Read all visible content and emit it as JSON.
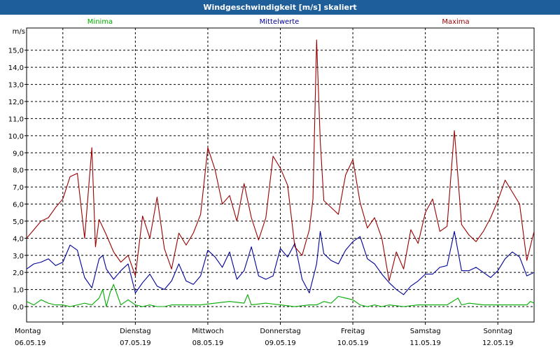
{
  "window": {
    "title": "Windgeschwindigkeit [m/s] skaliert"
  },
  "colors": {
    "min": "#00aa00",
    "mean": "#000099",
    "max": "#990000",
    "grid": "#000000"
  },
  "chart_data": {
    "type": "line",
    "title": "Windgeschwindigkeit [m/s] skaliert",
    "ylabel": "m/s",
    "ylim": [
      -0.9,
      16.3
    ],
    "yticks": [
      "0,0",
      "1,0",
      "2,0",
      "3,0",
      "4,0",
      "5,0",
      "6,0",
      "7,0",
      "8,0",
      "9,0",
      "10,0",
      "11,0",
      "12,0",
      "13,0",
      "14,0",
      "15,0"
    ],
    "ytick_values": [
      0,
      1,
      2,
      3,
      4,
      5,
      6,
      7,
      8,
      9,
      10,
      11,
      12,
      13,
      14,
      15
    ],
    "xlim": [
      0,
      7
    ],
    "x_labels": [
      {
        "day": "Montag",
        "date": "06.05.19",
        "x": 0
      },
      {
        "day": "Dienstag",
        "date": "07.05.19",
        "x": 1
      },
      {
        "day": "Mittwoch",
        "date": "08.05.19",
        "x": 2
      },
      {
        "day": "Donnerstag",
        "date": "09.05.19",
        "x": 3
      },
      {
        "day": "Freitag",
        "date": "10.05.19",
        "x": 4
      },
      {
        "day": "Samstag",
        "date": "11.05.19",
        "x": 5
      },
      {
        "day": "Sonntag",
        "date": "12.05.19",
        "x": 6
      }
    ],
    "series": [
      {
        "name": "Minima",
        "color": "#00aa00",
        "x": [
          0,
          0.1,
          0.2,
          0.3,
          0.4,
          0.5,
          0.6,
          0.7,
          0.8,
          0.9,
          1.0,
          1.05,
          1.1,
          1.15,
          1.2,
          1.3,
          1.4,
          1.5,
          1.6,
          1.7,
          1.8,
          1.9,
          2.0,
          2.2,
          2.4,
          2.6,
          2.8,
          3.0,
          3.05,
          3.1,
          3.3,
          3.5,
          3.7,
          3.9,
          4.0,
          4.1,
          4.2,
          4.3,
          4.4,
          4.5,
          4.6,
          4.7,
          4.8,
          4.9,
          5.0,
          5.2,
          5.4,
          5.6,
          5.8,
          5.95,
          6.0,
          6.1,
          6.3,
          6.5,
          6.7,
          6.9,
          6.95,
          7.0
        ],
        "values": [
          0.3,
          0.1,
          0.4,
          0.2,
          0.1,
          0.1,
          0.0,
          0.1,
          0.2,
          0.1,
          0.5,
          1.0,
          0.0,
          0.8,
          1.3,
          0.1,
          0.4,
          0.1,
          0.0,
          0.1,
          0.0,
          0.0,
          0.1,
          0.1,
          0.1,
          0.2,
          0.3,
          0.2,
          0.7,
          0.1,
          0.2,
          0.1,
          0.0,
          0.1,
          0.1,
          0.3,
          0.2,
          0.6,
          0.5,
          0.4,
          0.1,
          0.0,
          0.1,
          0.0,
          0.1,
          0.0,
          0.1,
          0.1,
          0.1,
          0.5,
          0.1,
          0.2,
          0.1,
          0.1,
          0.1,
          0.1,
          0.3,
          0.2
        ]
      },
      {
        "name": "Mittelwerte",
        "color": "#000099",
        "x": [
          0,
          0.1,
          0.2,
          0.3,
          0.4,
          0.5,
          0.6,
          0.7,
          0.8,
          0.9,
          1.0,
          1.05,
          1.1,
          1.2,
          1.3,
          1.4,
          1.5,
          1.6,
          1.7,
          1.8,
          1.9,
          2.0,
          2.1,
          2.2,
          2.3,
          2.4,
          2.5,
          2.6,
          2.7,
          2.8,
          2.9,
          3.0,
          3.1,
          3.2,
          3.3,
          3.4,
          3.5,
          3.6,
          3.7,
          3.8,
          3.9,
          4.0,
          4.05,
          4.1,
          4.2,
          4.3,
          4.4,
          4.5,
          4.6,
          4.7,
          4.8,
          4.9,
          5.0,
          5.1,
          5.2,
          5.3,
          5.4,
          5.5,
          5.6,
          5.7,
          5.8,
          5.9,
          6.0,
          6.1,
          6.2,
          6.3,
          6.4,
          6.5,
          6.6,
          6.7,
          6.8,
          6.9,
          7.0
        ],
        "values": [
          2.2,
          2.5,
          2.6,
          2.8,
          2.4,
          2.6,
          3.6,
          3.3,
          1.7,
          1.1,
          2.8,
          3.0,
          2.2,
          1.6,
          2.1,
          2.5,
          0.8,
          1.4,
          1.9,
          1.2,
          1.0,
          1.5,
          2.5,
          1.5,
          1.3,
          1.8,
          3.3,
          2.9,
          2.3,
          3.2,
          1.6,
          2.1,
          3.5,
          1.8,
          1.6,
          1.8,
          3.4,
          2.9,
          3.7,
          1.6,
          0.8,
          2.5,
          4.4,
          3.1,
          2.7,
          2.5,
          3.3,
          3.8,
          4.1,
          2.8,
          2.5,
          1.9,
          1.4,
          1.0,
          0.7,
          1.2,
          1.5,
          1.9,
          1.9,
          2.3,
          2.4,
          4.4,
          2.1,
          2.1,
          2.3,
          2.0,
          1.7,
          2.1,
          2.8,
          3.2,
          2.9,
          1.8,
          2.0
        ]
      },
      {
        "name": "Maxima",
        "color": "#990000",
        "x": [
          0,
          0.1,
          0.2,
          0.3,
          0.4,
          0.5,
          0.6,
          0.7,
          0.8,
          0.9,
          0.95,
          1.0,
          1.1,
          1.2,
          1.3,
          1.4,
          1.5,
          1.6,
          1.7,
          1.8,
          1.9,
          2.0,
          2.1,
          2.2,
          2.3,
          2.4,
          2.5,
          2.6,
          2.7,
          2.8,
          2.9,
          3.0,
          3.1,
          3.2,
          3.3,
          3.4,
          3.5,
          3.6,
          3.7,
          3.8,
          3.9,
          3.95,
          4.0,
          4.05,
          4.1,
          4.2,
          4.3,
          4.4,
          4.5,
          4.6,
          4.7,
          4.8,
          4.9,
          5.0,
          5.1,
          5.2,
          5.3,
          5.4,
          5.5,
          5.6,
          5.7,
          5.8,
          5.9,
          6.0,
          6.1,
          6.2,
          6.3,
          6.4,
          6.5,
          6.6,
          6.7,
          6.8,
          6.9,
          7.0
        ],
        "values": [
          4.0,
          4.5,
          5.0,
          5.2,
          5.8,
          6.3,
          7.6,
          7.8,
          4.0,
          9.3,
          3.5,
          5.1,
          4.2,
          3.2,
          2.6,
          3.0,
          1.8,
          5.3,
          4.0,
          6.4,
          3.4,
          2.2,
          4.3,
          3.6,
          4.3,
          5.4,
          9.3,
          8.0,
          6.0,
          6.5,
          5.0,
          7.2,
          5.2,
          3.9,
          5.2,
          8.8,
          8.1,
          7.1,
          3.5,
          3.0,
          4.5,
          6.3,
          15.6,
          9.7,
          6.2,
          5.8,
          5.4,
          7.7,
          8.6,
          6.1,
          4.6,
          5.2,
          4.0,
          1.5,
          3.2,
          2.2,
          4.5,
          3.7,
          5.5,
          6.3,
          4.4,
          4.7,
          10.3,
          4.8,
          4.2,
          3.8,
          4.4,
          5.2,
          6.2,
          7.4,
          6.7,
          6.0,
          2.7,
          4.4
        ]
      }
    ]
  }
}
